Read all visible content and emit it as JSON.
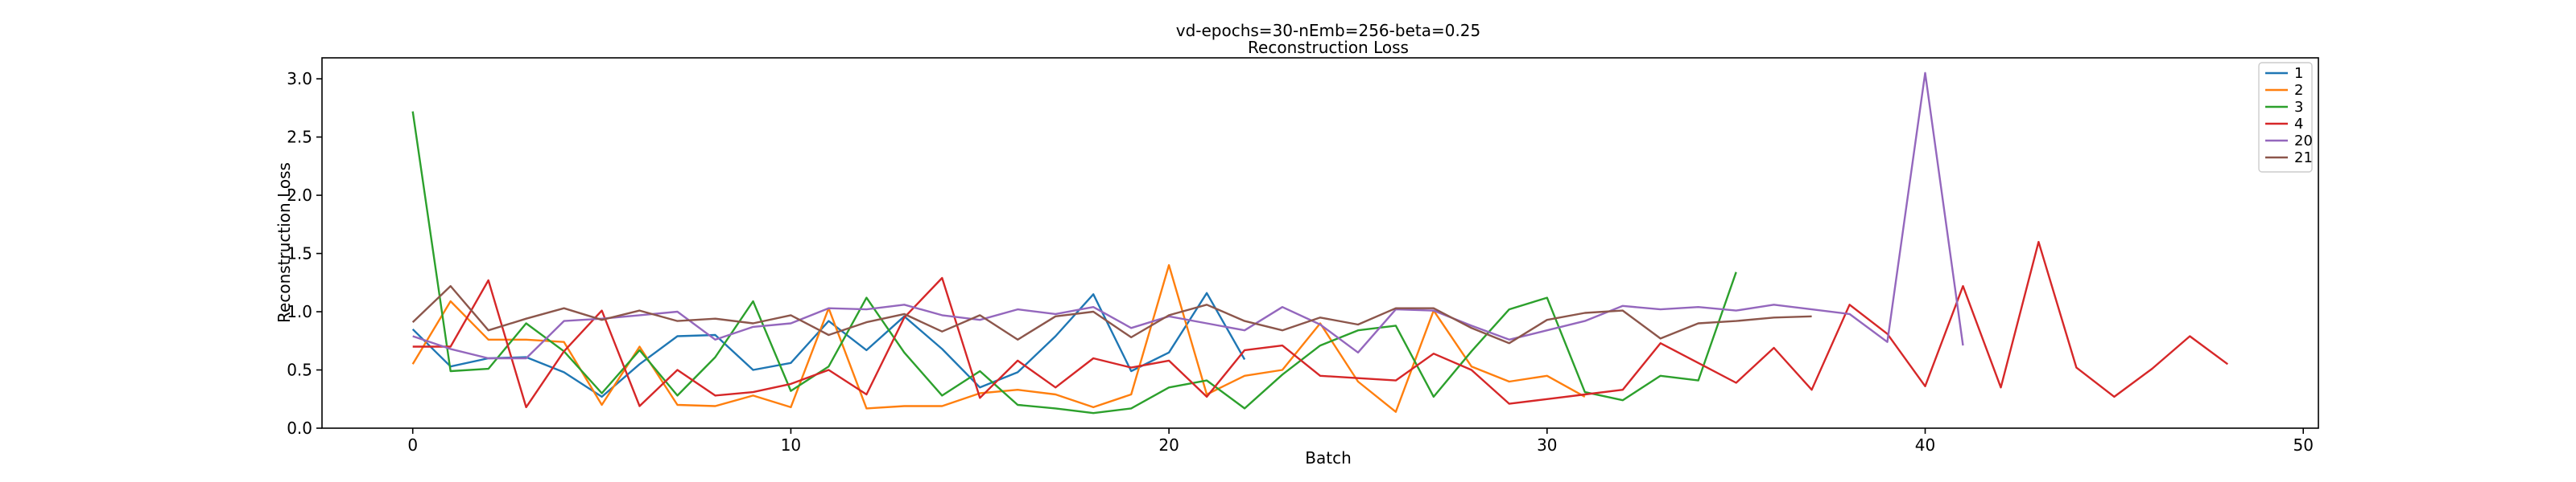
{
  "chart_data": {
    "type": "line",
    "title": "vd-epochs=30-nEmb=256-beta=0.25",
    "subtitle": "Reconstruction Loss",
    "xlabel": "Batch",
    "ylabel": "Reconstruction Loss",
    "xlim": [
      -2.4,
      50.4
    ],
    "ylim": [
      0,
      3.18
    ],
    "xticks": [
      0,
      10,
      20,
      30,
      40,
      50
    ],
    "yticks": [
      0.0,
      0.5,
      1.0,
      1.5,
      2.0,
      2.5,
      3.0
    ],
    "grid": false,
    "legend_position": "top-right",
    "series": [
      {
        "name": "1",
        "color": "#1f77b4",
        "x_start": 0,
        "values": [
          0.85,
          0.53,
          0.6,
          0.61,
          0.48,
          0.27,
          0.55,
          0.79,
          0.8,
          0.5,
          0.56,
          0.92,
          0.67,
          0.96,
          0.68,
          0.35,
          0.48,
          0.79,
          1.15,
          0.49,
          0.65,
          1.16,
          0.59
        ]
      },
      {
        "name": "2",
        "color": "#ff7f0e",
        "x_start": 0,
        "values": [
          0.55,
          1.09,
          0.76,
          0.76,
          0.74,
          0.2,
          0.7,
          0.2,
          0.19,
          0.28,
          0.18,
          1.03,
          0.17,
          0.19,
          0.19,
          0.3,
          0.33,
          0.29,
          0.18,
          0.29,
          1.4,
          0.29,
          0.45,
          0.5,
          0.9,
          0.4,
          0.14,
          1.01,
          0.53,
          0.4,
          0.45,
          0.27
        ]
      },
      {
        "name": "3",
        "color": "#2ca02c",
        "x_start": 0,
        "values": [
          2.72,
          0.49,
          0.51,
          0.9,
          0.66,
          0.3,
          0.67,
          0.28,
          0.61,
          1.09,
          0.32,
          0.53,
          1.12,
          0.65,
          0.28,
          0.49,
          0.2,
          0.17,
          0.13,
          0.17,
          0.35,
          0.41,
          0.17,
          0.46,
          0.71,
          0.84,
          0.88,
          0.27,
          0.66,
          1.02,
          1.12,
          0.31,
          0.24,
          0.45,
          0.41,
          1.34
        ]
      },
      {
        "name": "4",
        "color": "#d62728",
        "x_start": 0,
        "values": [
          0.7,
          0.7,
          1.27,
          0.18,
          0.66,
          1.01,
          0.19,
          0.5,
          0.28,
          0.31,
          0.38,
          0.5,
          0.29,
          0.95,
          1.29,
          0.26,
          0.58,
          0.35,
          0.6,
          0.52,
          0.58,
          0.27,
          0.67,
          0.71,
          0.45,
          0.43,
          0.41,
          0.64,
          0.5,
          0.21,
          0.25,
          0.29,
          0.33,
          0.73,
          0.56,
          0.39,
          0.69,
          0.33,
          1.06,
          0.81,
          0.36,
          1.22,
          0.35,
          1.6,
          0.52,
          0.27,
          0.51,
          0.79,
          0.55
        ]
      },
      {
        "name": "20",
        "color": "#9467bd",
        "x_start": 0,
        "values": [
          0.79,
          0.68,
          0.6,
          0.6,
          0.92,
          0.94,
          0.97,
          1.0,
          0.76,
          0.87,
          0.9,
          1.03,
          1.02,
          1.06,
          0.97,
          0.93,
          1.02,
          0.98,
          1.04,
          0.86,
          0.96,
          0.9,
          0.84,
          1.04,
          0.89,
          0.65,
          1.02,
          1.01,
          0.88,
          0.76,
          0.84,
          0.92,
          1.05,
          1.02,
          1.04,
          1.01,
          1.06,
          1.02,
          0.98,
          0.74,
          3.05,
          0.71
        ]
      },
      {
        "name": "21",
        "color": "#8c564b",
        "x_start": 0,
        "values": [
          0.91,
          1.22,
          0.84,
          0.94,
          1.03,
          0.93,
          1.01,
          0.92,
          0.94,
          0.9,
          0.97,
          0.8,
          0.91,
          0.98,
          0.83,
          0.97,
          0.76,
          0.96,
          1.0,
          0.78,
          0.97,
          1.06,
          0.92,
          0.84,
          0.95,
          0.89,
          1.03,
          1.03,
          0.86,
          0.73,
          0.93,
          0.99,
          1.01,
          0.77,
          0.9,
          0.92,
          0.95,
          0.96
        ]
      }
    ]
  }
}
